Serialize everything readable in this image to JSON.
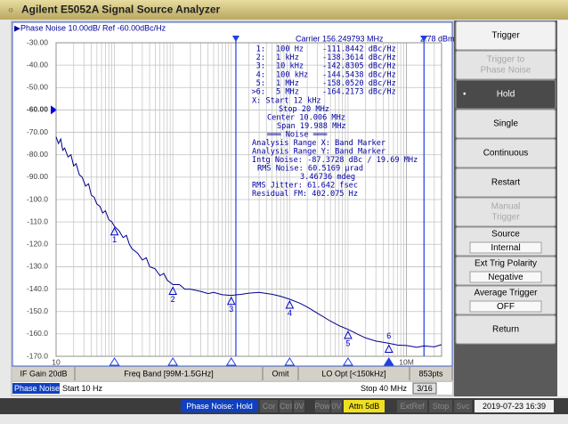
{
  "window": {
    "title": "Agilent E5052A Signal Source Analyzer"
  },
  "chart_data": {
    "type": "line",
    "title": "Phase Noise 10.00dB/ Ref -60.00dBc/Hz",
    "carrier": "Carrier 156.249793 MHz",
    "carrier_power": "2.78 dBm",
    "log_x": true,
    "grid": true,
    "ref_level": -60,
    "xlim": [
      10,
      40000000
    ],
    "xticks": [
      10,
      {
        "value": 10000000,
        "label": "10M"
      }
    ],
    "ylim": [
      -170,
      -30
    ],
    "yticks": [
      {
        "value": -30,
        "label": "-30.00"
      },
      {
        "value": -40,
        "label": "-40.00"
      },
      {
        "value": -50,
        "label": "-50.00"
      },
      {
        "value": -60,
        "label": "-60.00"
      },
      {
        "value": -70,
        "label": "-70.00"
      },
      {
        "value": -80,
        "label": "-80.00"
      },
      {
        "value": -90,
        "label": "-90.00"
      },
      {
        "value": -100,
        "label": "-100.0"
      },
      {
        "value": -110,
        "label": "-110.0"
      },
      {
        "value": -120,
        "label": "-120.0"
      },
      {
        "value": -130,
        "label": "-130.0"
      },
      {
        "value": -140,
        "label": "-140.0"
      },
      {
        "value": -150,
        "label": "-150.0"
      },
      {
        "value": -160,
        "label": "-160.0"
      },
      {
        "value": -170,
        "label": "-170.0"
      }
    ],
    "x": [
      10,
      11,
      12,
      13,
      14,
      16,
      18,
      20,
      22,
      25,
      28,
      32,
      36,
      40,
      45,
      50,
      56,
      63,
      70,
      80,
      90,
      100,
      120,
      140,
      160,
      180,
      200,
      250,
      300,
      350,
      400,
      500,
      600,
      700,
      800,
      1000,
      1300,
      1600,
      2000,
      3000,
      4000,
      5000,
      7000,
      10000,
      15000,
      20000,
      30000,
      50000,
      70000,
      100000,
      150000,
      200000,
      300000,
      500000,
      700000,
      1000000,
      1500000,
      2000000,
      3000000,
      5000000,
      7000000,
      10000000,
      15000000,
      20000000,
      30000000,
      40000000
    ],
    "series": [
      {
        "color": "#00008b",
        "values": [
          -72,
          -75,
          -73,
          -78,
          -77,
          -81,
          -80,
          -85,
          -84,
          -89,
          -90,
          -94,
          -93,
          -98,
          -99,
          -102,
          -103,
          -106,
          -105,
          -109,
          -110,
          -112,
          -114,
          -117,
          -116,
          -120,
          -122,
          -124,
          -127,
          -126,
          -130,
          -131,
          -134,
          -133,
          -136,
          -138,
          -138,
          -140,
          -140,
          -141,
          -142,
          -141.5,
          -142.5,
          -142.8,
          -142.3,
          -141.8,
          -141.5,
          -142.3,
          -143.2,
          -144.5,
          -146.3,
          -148,
          -150.8,
          -154.3,
          -156.3,
          -158,
          -160.3,
          -161.8,
          -163.2,
          -164.2,
          -165,
          -165.2,
          -166,
          -165.4,
          -165.8,
          -164.8
        ]
      }
    ],
    "markers": [
      {
        "label": "1",
        "x": 100,
        "value": -111.8442,
        "row": [
          "1:",
          "100 Hz",
          "-111.8442 dBc/Hz"
        ]
      },
      {
        "label": "2",
        "x": 1000,
        "value": -138.3614,
        "row": [
          "2:",
          "1 kHz",
          "-138.3614 dBc/Hz"
        ]
      },
      {
        "label": "3",
        "x": 10000,
        "value": -142.8305,
        "row": [
          "3:",
          "10 kHz",
          "-142.8305 dBc/Hz"
        ]
      },
      {
        "label": "4",
        "x": 100000,
        "value": -144.5438,
        "row": [
          "4:",
          "100 kHz",
          "-144.5438 dBc/Hz"
        ]
      },
      {
        "label": "5",
        "x": 1000000,
        "value": -158.052,
        "row": [
          "5:",
          "1 MHz",
          "-158.0520 dBc/Hz"
        ]
      },
      {
        "label": "6",
        "x": 5000000,
        "value": -164.2173,
        "active": true,
        "row": [
          ">6:",
          "5 MHz",
          "-164.2173 dBc/Hz"
        ]
      }
    ],
    "band_start": 12000,
    "band_stop": 20000000,
    "info": [
      "X: Start 12 kHz",
      "Stop 20 MHz",
      "Center 10.006 MHz",
      "Span 19.988 MHz",
      "═══ Noise ═══",
      "Analysis Range X: Band Marker",
      "Analysis Range Y: Band Marker",
      "Intg Noise: -87.3728 dBc / 19.69 MHz",
      "RMS Noise: 60.5169 µrad",
      "3.46736 mdeg",
      "RMS Jitter: 61.642 fsec",
      "Residual FM: 402.075 Hz"
    ]
  },
  "status_bar_1": [
    "IF Gain 20dB",
    "Freq Band [99M-1.5GHz]",
    "Omit",
    "LO Opt [<150kHz]",
    "853pts"
  ],
  "status_bar_2": {
    "mode": "Phase Noise",
    "start": "Start 10 Hz",
    "stop": "Stop 40 MHz",
    "page": "3/16"
  },
  "status_bar_3": [
    {
      "text": "Phase Noise: Hold",
      "style": "mode"
    },
    {
      "text": "Cor",
      "style": "off"
    },
    {
      "text": "Ctrl",
      "style": "off"
    },
    {
      "text": "0V",
      "style": "off"
    },
    {
      "text": "Pow",
      "style": "off"
    },
    {
      "text": "0V",
      "style": "off"
    },
    {
      "text": "Attn 5dB",
      "style": "warn"
    },
    {
      "text": "ExtRef",
      "style": "off"
    },
    {
      "text": "Stop",
      "style": "off"
    },
    {
      "text": "Svc",
      "style": "off"
    },
    {
      "text": "2019-07-23 16:39",
      "style": "clock"
    }
  ],
  "softkeys": [
    {
      "lines": [
        "Trigger"
      ],
      "header": true
    },
    {
      "lines": [
        "Trigger to",
        "Phase Noise"
      ],
      "disabled": true
    },
    {
      "lines": [
        "Hold"
      ],
      "selected": true
    },
    {
      "lines": [
        "Single"
      ]
    },
    {
      "lines": [
        "Continuous"
      ]
    },
    {
      "lines": [
        "Restart"
      ]
    },
    {
      "lines": [
        "Manual",
        "Trigger"
      ],
      "disabled": true
    },
    {
      "lines": [
        "Source"
      ],
      "value": "Internal"
    },
    {
      "lines": [
        "Ext Trig Polarity"
      ],
      "value": "Negative"
    },
    {
      "lines": [
        "Average Trigger"
      ],
      "value": "OFF"
    },
    {
      "lines": [
        "Return"
      ]
    }
  ]
}
